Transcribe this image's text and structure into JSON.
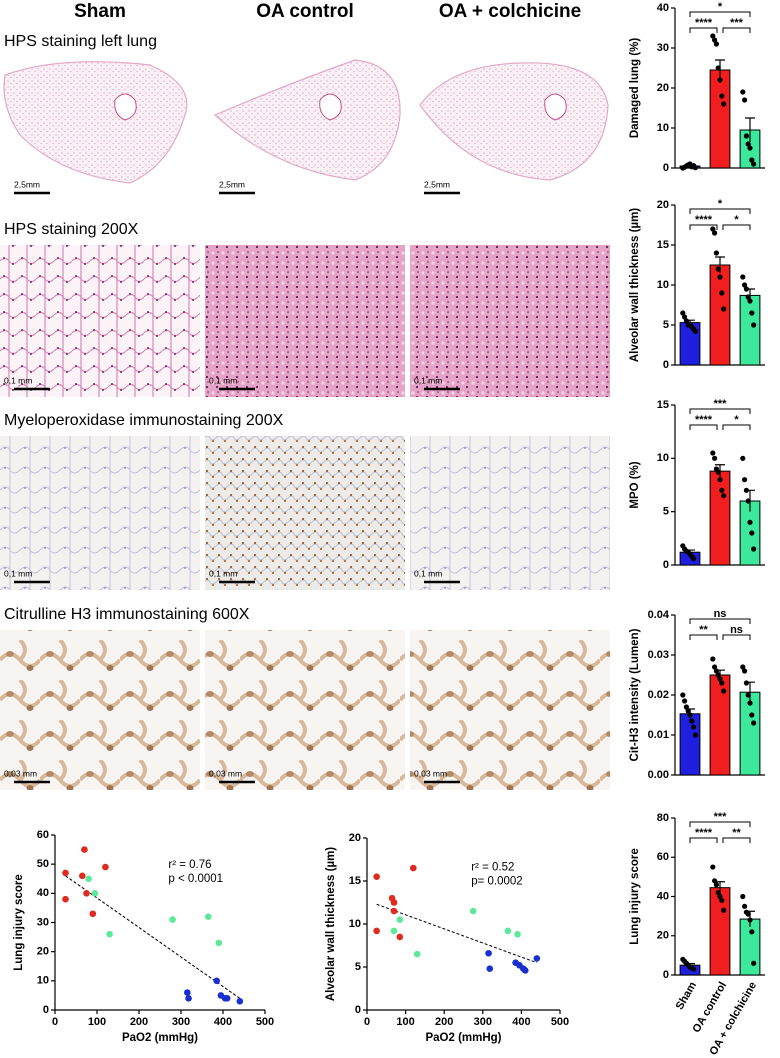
{
  "column_headers": [
    "Sham",
    "OA control",
    "OA + colchicine"
  ],
  "panel_rows": [
    {
      "label": "HPS staining left lung",
      "scale_bars": [
        "2,5mm",
        "2,5mm",
        "2,5mm"
      ]
    },
    {
      "label": "HPS staining 200X",
      "scale_bars": [
        "0,1 mm",
        "0,1 mm",
        "0,1 mm"
      ]
    },
    {
      "label": "Myeloperoxidase immunostaining 200X",
      "scale_bars": [
        "0,1 mm",
        "0,1 mm",
        "0,1 mm"
      ]
    },
    {
      "label": "Citrulline H3 immunostaining 600X",
      "scale_bars": [
        "0,03 mm",
        "0,03 mm",
        "0,03 mm"
      ]
    }
  ],
  "chart_data": [
    {
      "type": "bar",
      "ylabel": "Damaged lung (%)",
      "categories": [
        null,
        null,
        null
      ],
      "colors": [
        "#1f1fe0",
        "#f01e1e",
        "#3de89a"
      ],
      "values": [
        0.5,
        24.5,
        9.5
      ],
      "errors": [
        0.3,
        2.5,
        3
      ],
      "points": [
        [
          0,
          0.2,
          0.5,
          0.8,
          1,
          0.3,
          0.6,
          0.1
        ],
        [
          33,
          32,
          31,
          25,
          22,
          18,
          16
        ],
        [
          19,
          17,
          8,
          6,
          5,
          2,
          1
        ]
      ],
      "ylim": [
        0,
        40
      ],
      "yticks": [
        0,
        10,
        20,
        30,
        40
      ],
      "comparisons": [
        {
          "pair": [
            0,
            2
          ],
          "label": "*"
        },
        {
          "pair": [
            0,
            1
          ],
          "label": "****"
        },
        {
          "pair": [
            1,
            2
          ],
          "label": "***"
        }
      ]
    },
    {
      "type": "bar",
      "ylabel": "Alveolar wall thickness (µm)",
      "categories": [
        null,
        null,
        null
      ],
      "colors": [
        "#1f1fe0",
        "#f01e1e",
        "#3de89a"
      ],
      "values": [
        5.3,
        12.5,
        8.7
      ],
      "errors": [
        0.3,
        1,
        0.8
      ],
      "points": [
        [
          6.5,
          6,
          5.5,
          5,
          5,
          4.8,
          4.5,
          4.2
        ],
        [
          17,
          16.5,
          14,
          12,
          11,
          9,
          7
        ],
        [
          11,
          10,
          9.5,
          8.5,
          8,
          6.5,
          5
        ]
      ],
      "ylim": [
        0,
        20
      ],
      "yticks": [
        0,
        5,
        10,
        15,
        20
      ],
      "comparisons": [
        {
          "pair": [
            0,
            2
          ],
          "label": "*"
        },
        {
          "pair": [
            0,
            1
          ],
          "label": "****"
        },
        {
          "pair": [
            1,
            2
          ],
          "label": "*"
        }
      ]
    },
    {
      "type": "bar",
      "ylabel": "MPO (%)",
      "categories": [
        null,
        null,
        null
      ],
      "colors": [
        "#1f1fe0",
        "#f01e1e",
        "#3de89a"
      ],
      "values": [
        1.2,
        8.8,
        6.0
      ],
      "errors": [
        0.2,
        0.6,
        1
      ],
      "points": [
        [
          1.8,
          1.5,
          1.3,
          1.2,
          1,
          0.8,
          0.6
        ],
        [
          10.5,
          10,
          9,
          8.7,
          8,
          7,
          6.5
        ],
        [
          10,
          8,
          7,
          6,
          4,
          3,
          1.5
        ]
      ],
      "ylim": [
        0,
        15
      ],
      "yticks": [
        0,
        5,
        10,
        15
      ],
      "comparisons": [
        {
          "pair": [
            0,
            2
          ],
          "label": "***"
        },
        {
          "pair": [
            0,
            1
          ],
          "label": "****"
        },
        {
          "pair": [
            1,
            2
          ],
          "label": "*"
        }
      ]
    },
    {
      "type": "bar",
      "ylabel": "Cit-H3 intensity (Lumen)",
      "categories": [
        null,
        null,
        null
      ],
      "colors": [
        "#1f1fe0",
        "#f01e1e",
        "#3de89a"
      ],
      "values": [
        0.0153,
        0.025,
        0.0207
      ],
      "errors": [
        0.0012,
        0.0012,
        0.0025
      ],
      "points": [
        [
          0.02,
          0.0185,
          0.017,
          0.016,
          0.015,
          0.0135,
          0.012,
          0.01
        ],
        [
          0.029,
          0.027,
          0.026,
          0.025,
          0.024,
          0.023,
          0.021
        ],
        [
          0.027,
          0.026,
          0.023,
          0.02,
          0.018,
          0.015,
          0.013
        ]
      ],
      "ylim": [
        0,
        0.04
      ],
      "yticks": [
        {
          "value": 0,
          "label": "0.00"
        },
        0.01,
        0.02,
        0.03,
        0.04
      ],
      "comparisons": [
        {
          "pair": [
            0,
            2
          ],
          "label": "ns"
        },
        {
          "pair": [
            0,
            1
          ],
          "label": "**"
        },
        {
          "pair": [
            1,
            2
          ],
          "label": "ns"
        }
      ]
    },
    {
      "type": "bar",
      "ylabel": "Lung injury score",
      "categories": [
        "Sham",
        "OA control",
        "OA + colchicine"
      ],
      "colors": [
        "#1f1fe0",
        "#f01e1e",
        "#3de89a"
      ],
      "values": [
        5,
        44.5,
        28.5
      ],
      "errors": [
        0.8,
        3,
        4
      ],
      "points": [
        [
          8,
          7,
          6,
          5,
          4,
          3.5,
          3
        ],
        [
          55,
          48,
          46,
          42,
          40,
          38,
          33
        ],
        [
          40,
          35,
          32,
          31,
          28,
          22,
          6
        ]
      ],
      "ylim": [
        0,
        80
      ],
      "yticks": [
        0,
        20,
        40,
        60,
        80
      ],
      "comparisons": [
        {
          "pair": [
            0,
            2
          ],
          "label": "***"
        },
        {
          "pair": [
            0,
            1
          ],
          "label": "****"
        },
        {
          "pair": [
            1,
            2
          ],
          "label": "**"
        }
      ]
    },
    {
      "type": "scatter",
      "xlabel": "PaO2 (mmHg)",
      "ylabel": "Lung injury score",
      "xlim": [
        0,
        500
      ],
      "xticks": [
        0,
        100,
        200,
        300,
        400,
        500
      ],
      "ylim": [
        0,
        60
      ],
      "yticks": [
        0,
        10,
        20,
        30,
        40,
        50,
        60
      ],
      "series": [
        {
          "color": "#e02a20",
          "x": [
            25,
            25,
            65,
            70,
            75,
            90,
            120
          ],
          "values": [
            47,
            38,
            46,
            55,
            40,
            33,
            49
          ]
        },
        {
          "color": "#5de89a",
          "x": [
            80,
            95,
            130,
            280,
            365,
            390
          ],
          "values": [
            45,
            40,
            26,
            31,
            32,
            23
          ]
        },
        {
          "color": "#1a2fd0",
          "x": [
            315,
            318,
            385,
            395,
            405,
            410,
            440
          ],
          "values": [
            6,
            4,
            10,
            5,
            4,
            4,
            3
          ]
        }
      ],
      "fit": {
        "x": [
          25,
          440
        ],
        "y": [
          46,
          4
        ]
      },
      "annotations": [
        "r² = 0.76",
        "p < 0.0001"
      ]
    },
    {
      "type": "scatter",
      "xlabel": "PaO2 (mmHg)",
      "ylabel": "Alveolar wall thickness (µm)",
      "xlim": [
        0,
        500
      ],
      "xticks": [
        0,
        100,
        200,
        300,
        400,
        500
      ],
      "ylim": [
        0,
        20
      ],
      "yticks": [
        0,
        5,
        10,
        15,
        20
      ],
      "series": [
        {
          "color": "#e02a20",
          "x": [
            25,
            25,
            65,
            70,
            70,
            85,
            120
          ],
          "values": [
            15.5,
            9.2,
            13,
            12.5,
            11.5,
            8.5,
            16.5
          ]
        },
        {
          "color": "#5de89a",
          "x": [
            85,
            70,
            130,
            275,
            365,
            390
          ],
          "values": [
            10.5,
            9.2,
            6.5,
            11.5,
            9.2,
            8.8
          ]
        },
        {
          "color": "#1a2fd0",
          "x": [
            315,
            318,
            385,
            395,
            405,
            410,
            440
          ],
          "values": [
            6.6,
            4.8,
            5.5,
            5.2,
            4.8,
            4.6,
            6
          ]
        }
      ],
      "fit": {
        "x": [
          25,
          440
        ],
        "y": [
          12.3,
          5.5
        ]
      },
      "annotations": [
        "r² = 0.52",
        "p= 0.0002"
      ]
    }
  ]
}
